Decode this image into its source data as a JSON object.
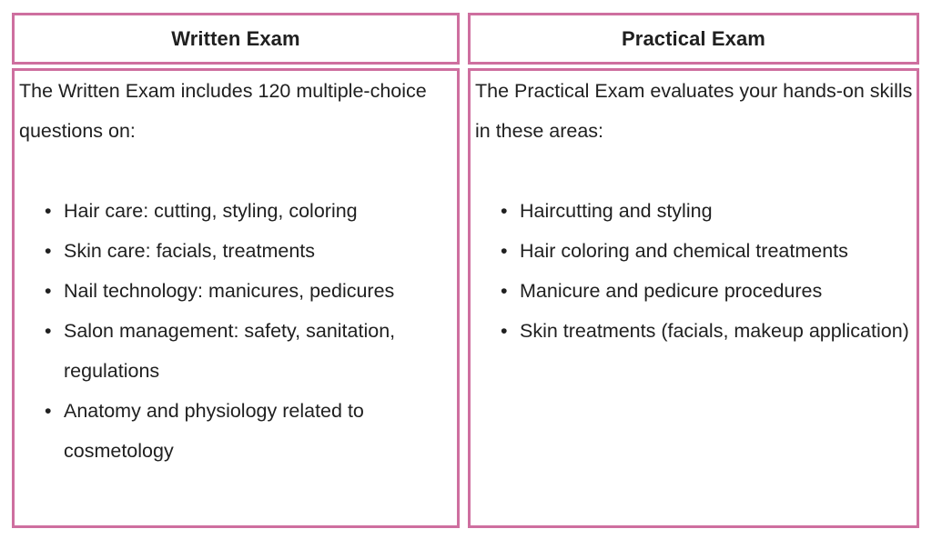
{
  "table": {
    "columns": [
      {
        "header": "Written Exam",
        "intro": "The Written Exam includes 120 multiple-choice questions on:",
        "bullets": [
          "Hair care: cutting, styling, coloring",
          "Skin care: facials, treatments",
          "Nail technology: manicures, pedicures",
          "Salon management: safety, sanitation, regulations",
          "Anatomy and physiology related to cosmetology"
        ]
      },
      {
        "header": "Practical Exam",
        "intro": "The Practical Exam evaluates your hands-on skills in these areas:",
        "bullets": [
          "Haircutting and styling",
          "Hair coloring and chemical treatments",
          "Manicure and pedicure procedures",
          "Skin treatments (facials, makeup application)"
        ]
      }
    ]
  },
  "colors": {
    "border": "#ce6f9f",
    "text": "#202020",
    "background": "#ffffff"
  }
}
